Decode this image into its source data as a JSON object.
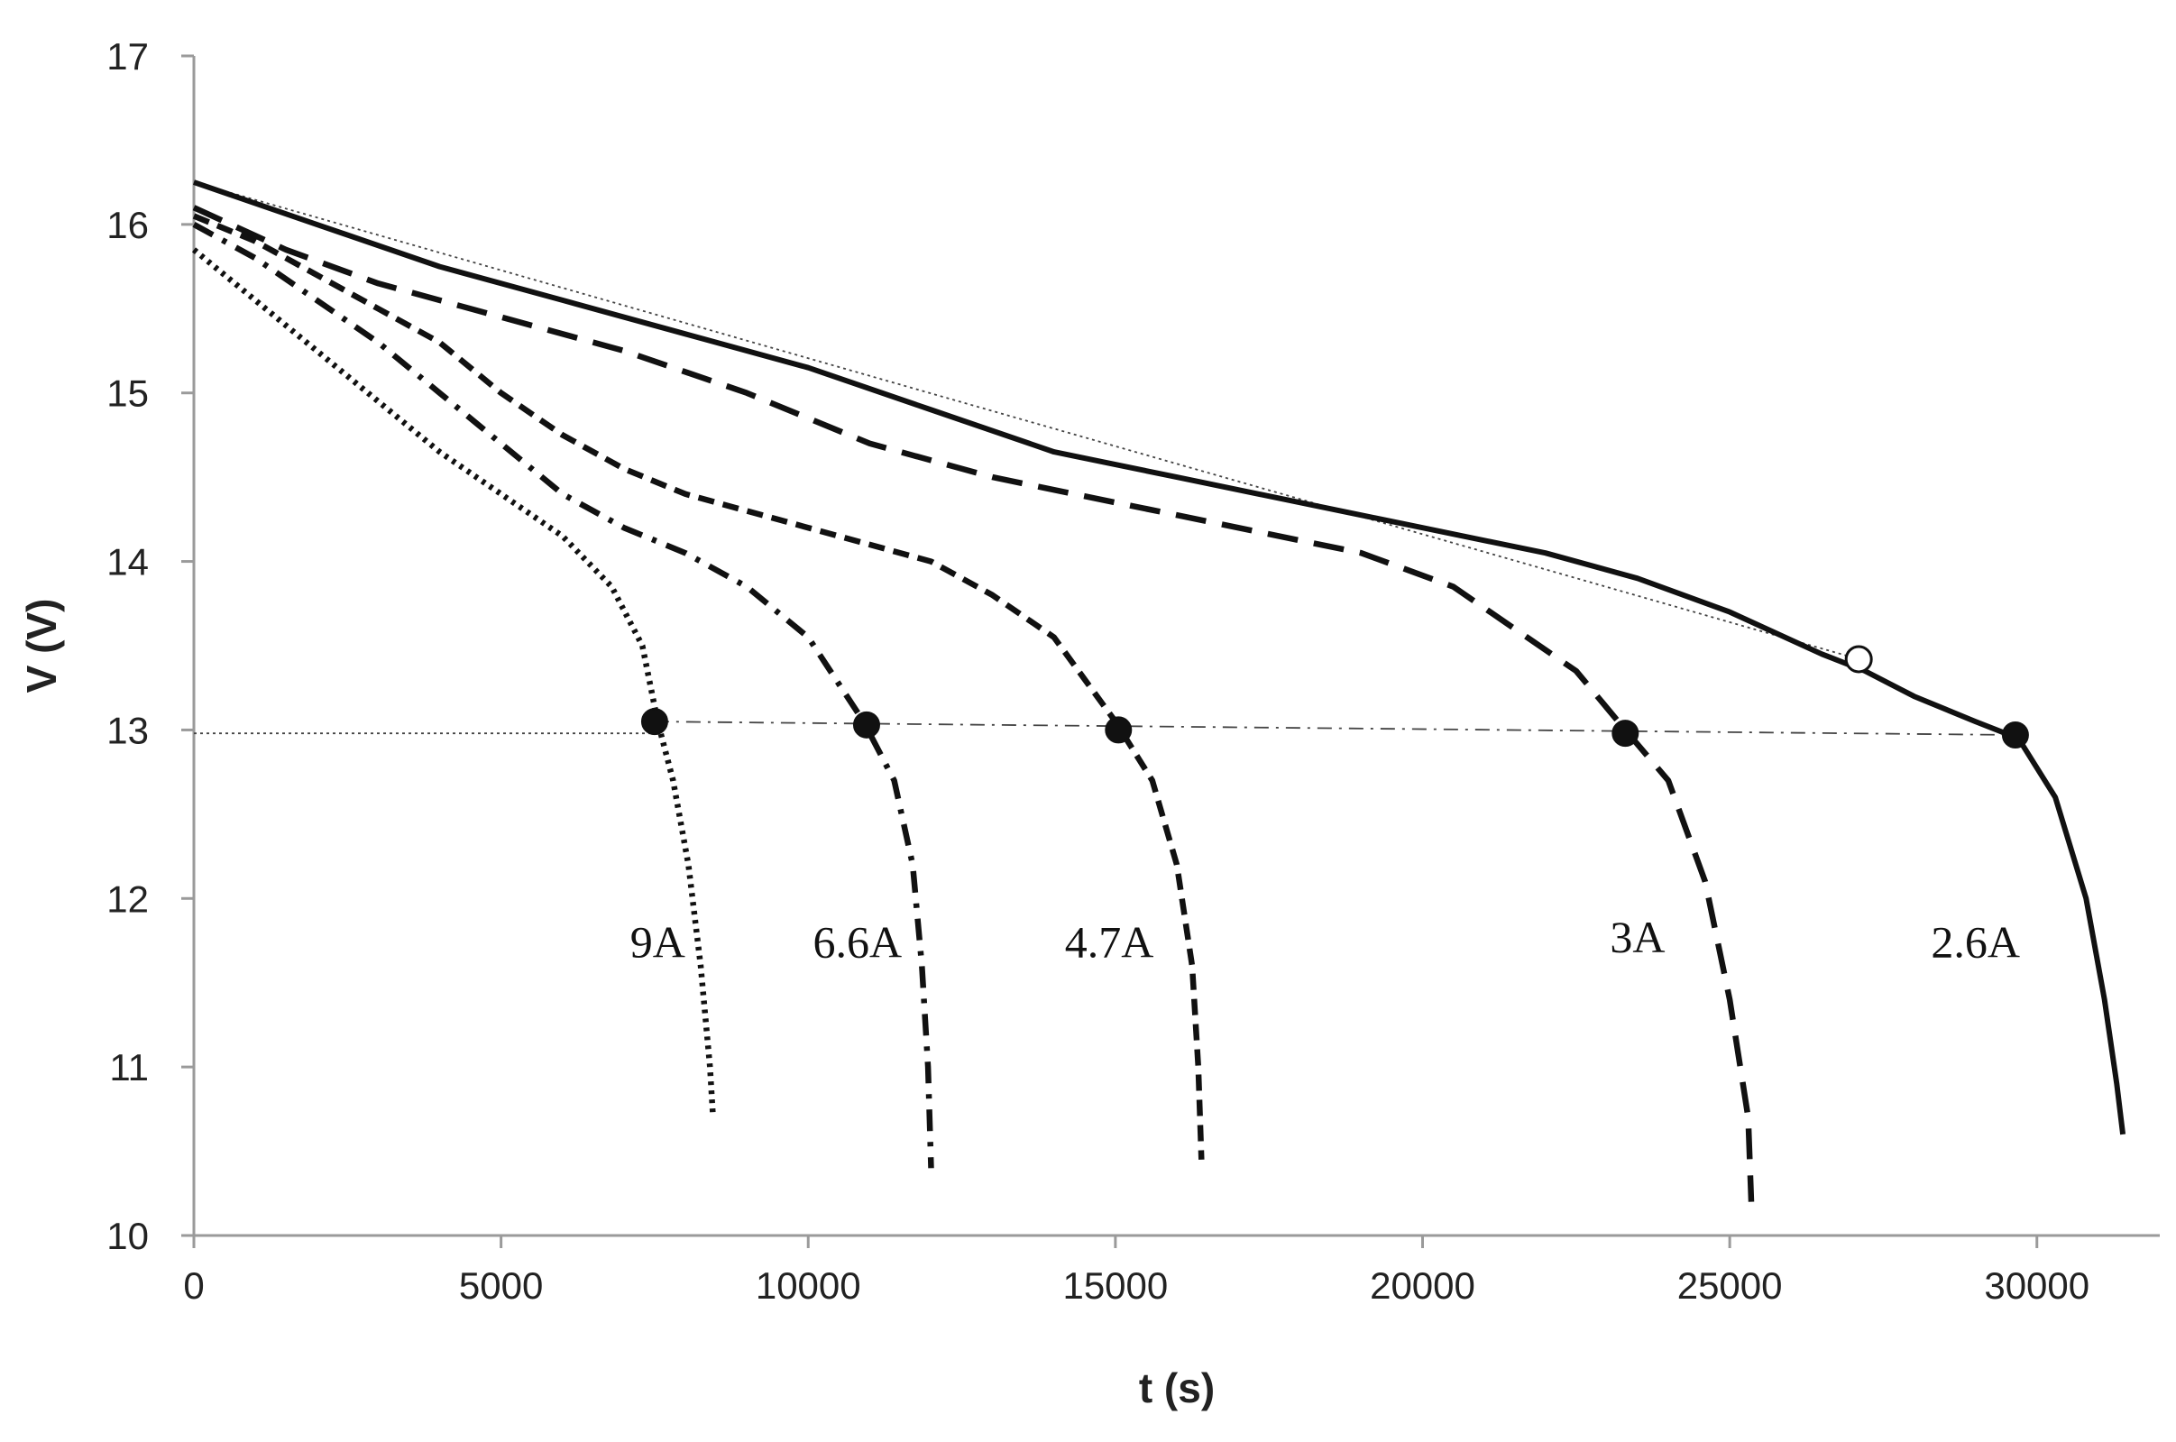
{
  "chart_data": {
    "type": "line",
    "title": "",
    "xlabel": "t (s)",
    "ylabel": "V (V)",
    "xlim": [
      0,
      32000
    ],
    "ylim": [
      10,
      17
    ],
    "x_ticks": [
      0,
      5000,
      10000,
      15000,
      20000,
      25000,
      30000
    ],
    "y_ticks": [
      10,
      11,
      12,
      13,
      14,
      15,
      16,
      17
    ],
    "grid": false,
    "legend": "none",
    "series": [
      {
        "name": "9A",
        "style": "dotted",
        "points": [
          [
            0,
            15.85
          ],
          [
            1000,
            15.55
          ],
          [
            2000,
            15.25
          ],
          [
            3000,
            14.95
          ],
          [
            4000,
            14.65
          ],
          [
            5000,
            14.4
          ],
          [
            6000,
            14.15
          ],
          [
            6800,
            13.85
          ],
          [
            7300,
            13.5
          ],
          [
            7550,
            13.05
          ],
          [
            7800,
            12.7
          ],
          [
            8050,
            12.2
          ],
          [
            8250,
            11.6
          ],
          [
            8400,
            11.0
          ],
          [
            8450,
            10.7
          ]
        ],
        "marker": {
          "x": 7500,
          "y": 13.05,
          "fill": "filled"
        }
      },
      {
        "name": "6.6A",
        "style": "dash-dot",
        "points": [
          [
            0,
            16.0
          ],
          [
            1000,
            15.8
          ],
          [
            2000,
            15.55
          ],
          [
            3000,
            15.3
          ],
          [
            4000,
            15.0
          ],
          [
            5000,
            14.7
          ],
          [
            6000,
            14.4
          ],
          [
            7000,
            14.2
          ],
          [
            8000,
            14.05
          ],
          [
            9000,
            13.85
          ],
          [
            10000,
            13.55
          ],
          [
            10900,
            13.05
          ],
          [
            11400,
            12.7
          ],
          [
            11700,
            12.2
          ],
          [
            11850,
            11.6
          ],
          [
            11950,
            11.0
          ],
          [
            12000,
            10.4
          ]
        ],
        "marker": {
          "x": 10950,
          "y": 13.03,
          "fill": "filled"
        }
      },
      {
        "name": "4.7A",
        "style": "short-dash",
        "points": [
          [
            0,
            16.05
          ],
          [
            1000,
            15.9
          ],
          [
            2000,
            15.7
          ],
          [
            3000,
            15.5
          ],
          [
            4000,
            15.3
          ],
          [
            5000,
            15.0
          ],
          [
            6000,
            14.75
          ],
          [
            7000,
            14.55
          ],
          [
            8000,
            14.4
          ],
          [
            9000,
            14.3
          ],
          [
            10000,
            14.2
          ],
          [
            11000,
            14.1
          ],
          [
            12000,
            14.0
          ],
          [
            13000,
            13.8
          ],
          [
            14000,
            13.55
          ],
          [
            15000,
            13.05
          ],
          [
            15600,
            12.7
          ],
          [
            16000,
            12.2
          ],
          [
            16250,
            11.6
          ],
          [
            16350,
            11.0
          ],
          [
            16400,
            10.45
          ]
        ],
        "marker": {
          "x": 15050,
          "y": 13.0,
          "fill": "filled"
        }
      },
      {
        "name": "3A",
        "style": "long-dash",
        "points": [
          [
            0,
            16.1
          ],
          [
            1500,
            15.85
          ],
          [
            3000,
            15.65
          ],
          [
            5000,
            15.45
          ],
          [
            7000,
            15.25
          ],
          [
            9000,
            15.0
          ],
          [
            11000,
            14.7
          ],
          [
            13000,
            14.5
          ],
          [
            15000,
            14.35
          ],
          [
            17000,
            14.2
          ],
          [
            19000,
            14.05
          ],
          [
            20500,
            13.85
          ],
          [
            21500,
            13.6
          ],
          [
            22500,
            13.35
          ],
          [
            23300,
            13.0
          ],
          [
            24000,
            12.7
          ],
          [
            24600,
            12.1
          ],
          [
            25000,
            11.4
          ],
          [
            25300,
            10.7
          ],
          [
            25350,
            10.2
          ]
        ],
        "marker": {
          "x": 23300,
          "y": 12.98,
          "fill": "filled"
        }
      },
      {
        "name": "2.6A",
        "style": "solid",
        "points": [
          [
            0,
            16.25
          ],
          [
            2000,
            16.0
          ],
          [
            4000,
            15.75
          ],
          [
            6000,
            15.55
          ],
          [
            8000,
            15.35
          ],
          [
            10000,
            15.15
          ],
          [
            12000,
            14.9
          ],
          [
            14000,
            14.65
          ],
          [
            16000,
            14.5
          ],
          [
            18000,
            14.35
          ],
          [
            20000,
            14.2
          ],
          [
            22000,
            14.05
          ],
          [
            23500,
            13.9
          ],
          [
            25000,
            13.7
          ],
          [
            26500,
            13.45
          ],
          [
            27200,
            13.35
          ],
          [
            28000,
            13.2
          ],
          [
            29000,
            13.05
          ],
          [
            29700,
            12.95
          ],
          [
            30300,
            12.6
          ],
          [
            30800,
            12.0
          ],
          [
            31100,
            11.4
          ],
          [
            31300,
            10.9
          ],
          [
            31400,
            10.6
          ]
        ],
        "marker": {
          "x": 29650,
          "y": 12.97,
          "fill": "filled"
        }
      }
    ],
    "reference_lines": [
      {
        "style": "dotted-thin",
        "points": [
          [
            0,
            16.25
          ],
          [
            27100,
            13.42
          ]
        ]
      },
      {
        "style": "dotted-thin",
        "points": [
          [
            0,
            12.98
          ],
          [
            7500,
            12.98
          ]
        ]
      },
      {
        "style": "dash-dot-thin",
        "points": [
          [
            7500,
            13.05
          ],
          [
            29650,
            12.97
          ]
        ]
      }
    ],
    "open_marker": {
      "x": 27100,
      "y": 13.42,
      "fill": "open"
    },
    "curve_labels": [
      {
        "text": "9A",
        "x": 7550,
        "y": 11.65
      },
      {
        "text": "6.6A",
        "x": 10800,
        "y": 11.65
      },
      {
        "text": "4.7A",
        "x": 14900,
        "y": 11.65
      },
      {
        "text": "3A",
        "x": 23500,
        "y": 11.68
      },
      {
        "text": "2.6A",
        "x": 29000,
        "y": 11.65
      }
    ]
  }
}
